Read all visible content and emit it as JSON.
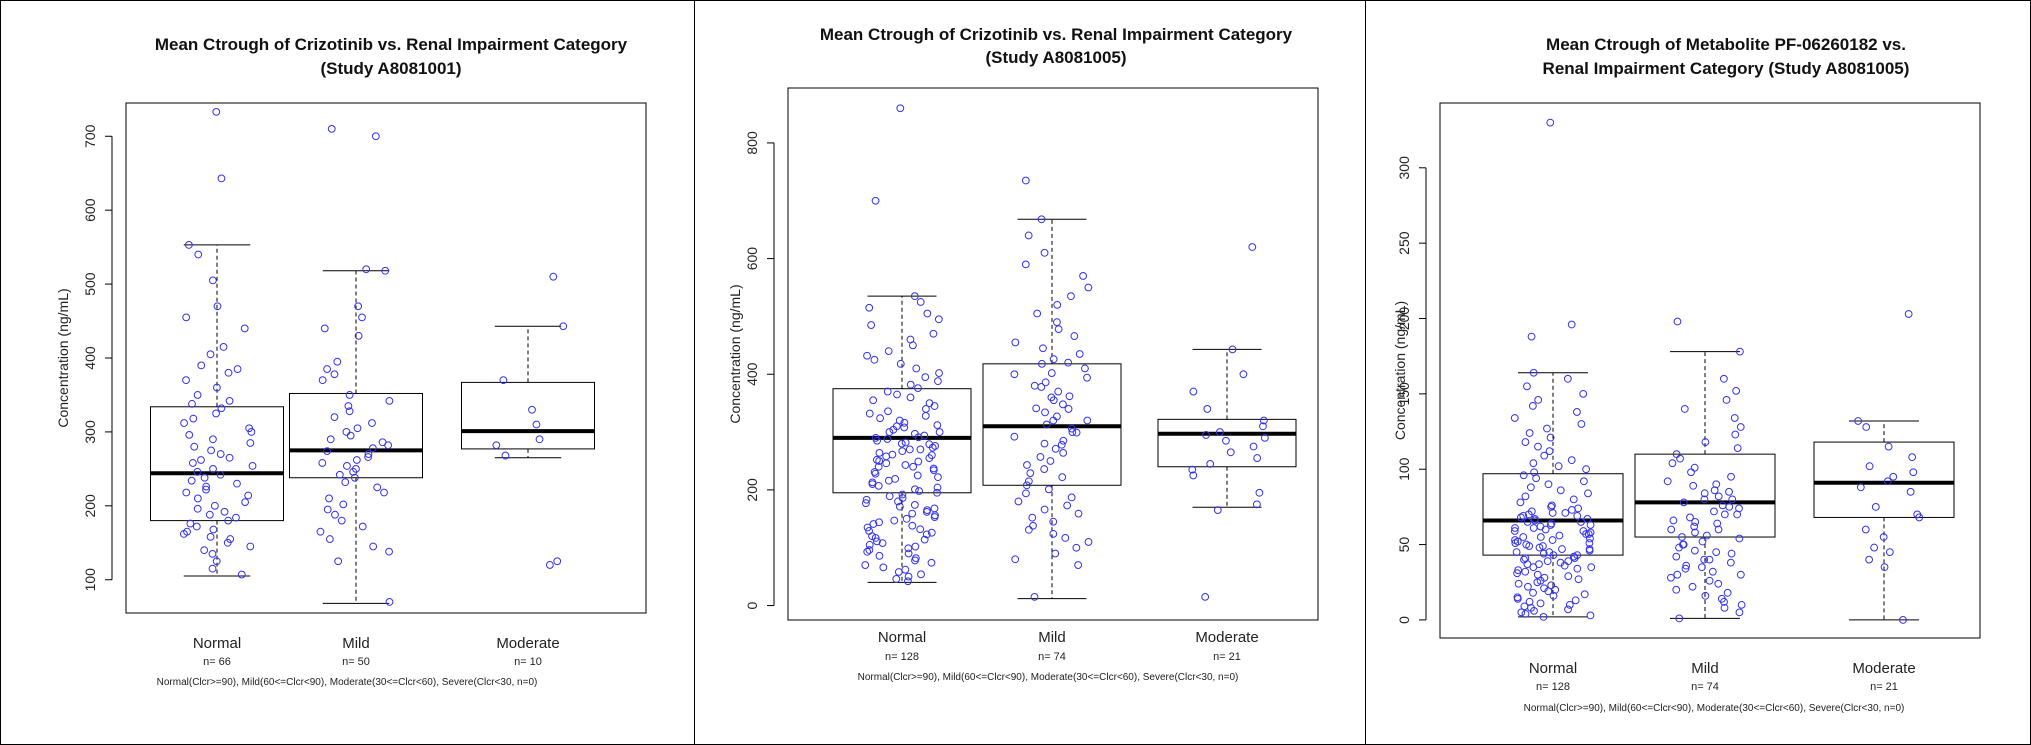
{
  "charts": [
    {
      "title_lines": [
        "Mean Ctrough of Crizotinib vs. Renal Impairment Category",
        "(Study A8081001)"
      ],
      "ylabel": "Concentration (ng/mL)",
      "footnote": "Normal(Clcr>=90), Mild(60<=Clcr<90), Moderate(30<=Clcr<60), Severe(Clcr<30, n=0)",
      "n_labels": [
        "n= 66",
        "n= 50",
        "n= 10"
      ]
    },
    {
      "title_lines": [
        "Mean Ctrough of Crizotinib vs. Renal Impairment Category",
        "(Study A8081005)"
      ],
      "ylabel": "Concentration (ng/mL)",
      "footnote": "Normal(Clcr>=90), Mild(60<=Clcr<90), Moderate(30<=Clcr<60), Severe(Clcr<30, n=0)",
      "n_labels": [
        "n= 128",
        "n= 74",
        "n= 21"
      ]
    },
    {
      "title_lines": [
        "Mean Ctrough of Metabolite PF-06260182 vs.",
        "Renal Impairment Category (Study A8081005)"
      ],
      "ylabel": "Concentration (ng/mL)",
      "footnote": "Normal(Clcr>=90), Mild(60<=Clcr<90), Moderate(30<=Clcr<60), Severe(Clcr<30, n=0)",
      "n_labels": [
        "n= 128",
        "n= 74",
        "n= 21"
      ]
    }
  ],
  "chart_data": [
    {
      "type": "box",
      "categories": [
        "Normal",
        "Mild",
        "Moderate"
      ],
      "yticks": [
        100,
        200,
        300,
        400,
        500,
        600,
        700
      ],
      "ylim": [
        55,
        745
      ],
      "grid": false,
      "point_color": "#3333ee",
      "boxes": [
        {
          "category": "Normal",
          "whisker_low": 105,
          "q1": 180,
          "median": 244,
          "q3": 334,
          "whisker_high": 553,
          "points": [
            733,
            643,
            553,
            540,
            505,
            470,
            455,
            440,
            415,
            405,
            390,
            385,
            380,
            370,
            360,
            350,
            342,
            338,
            332,
            325,
            318,
            312,
            305,
            300,
            296,
            290,
            285,
            280,
            275,
            270,
            265,
            262,
            258,
            254,
            250,
            246,
            242,
            238,
            234,
            230,
            226,
            222,
            218,
            214,
            210,
            205,
            200,
            196,
            192,
            188,
            184,
            180,
            176,
            172,
            168,
            165,
            162,
            158,
            155,
            150,
            145,
            140,
            135,
            125,
            115,
            107
          ]
        },
        {
          "category": "Mild",
          "whisker_low": 68,
          "q1": 238,
          "median": 275,
          "q3": 352,
          "whisker_high": 518,
          "points": [
            710,
            700,
            520,
            518,
            470,
            455,
            440,
            430,
            395,
            385,
            378,
            370,
            350,
            342,
            335,
            328,
            320,
            312,
            305,
            300,
            295,
            290,
            286,
            282,
            278,
            274,
            270,
            266,
            262,
            258,
            254,
            250,
            246,
            242,
            238,
            232,
            225,
            218,
            210,
            202,
            195,
            188,
            180,
            172,
            165,
            155,
            145,
            138,
            125,
            70
          ]
        },
        {
          "category": "Moderate",
          "whisker_low": 265,
          "q1": 277,
          "median": 301,
          "q3": 367,
          "whisker_high": 443,
          "points": [
            510,
            443,
            370,
            330,
            310,
            290,
            282,
            268,
            125,
            120
          ]
        }
      ]
    },
    {
      "type": "box",
      "categories": [
        "Normal",
        "Mild",
        "Moderate"
      ],
      "yticks": [
        0,
        200,
        400,
        600,
        800
      ],
      "ylim": [
        -25,
        895
      ],
      "grid": false,
      "point_color": "#3333ee",
      "boxes": [
        {
          "category": "Normal",
          "whisker_low": 40,
          "q1": 195,
          "median": 290,
          "q3": 375,
          "whisker_high": 535,
          "points": [
            860,
            700,
            535,
            525,
            515,
            505,
            495,
            485,
            470,
            460,
            450,
            440,
            432,
            425,
            418,
            410,
            402,
            395,
            388,
            382,
            376,
            370,
            365,
            360,
            355,
            350,
            345,
            340,
            336,
            332,
            328,
            324,
            320,
            316,
            312,
            308,
            304,
            300,
            297,
            294,
            291,
            288,
            285,
            282,
            279,
            276,
            273,
            270,
            267,
            264,
            261,
            258,
            255,
            252,
            249,
            246,
            243,
            240,
            237,
            234,
            231,
            228,
            225,
            222,
            219,
            216,
            213,
            210,
            207,
            204,
            201,
            198,
            195,
            192,
            189,
            186,
            183,
            180,
            177,
            174,
            171,
            168,
            165,
            162,
            159,
            156,
            153,
            150,
            147,
            144,
            141,
            138,
            135,
            132,
            129,
            126,
            123,
            120,
            117,
            114,
            111,
            108,
            105,
            102,
            99,
            96,
            93,
            90,
            86,
            82,
            78,
            74,
            70,
            66,
            62,
            58,
            54,
            50,
            46,
            42,
            310,
            300,
            290,
            280,
            270,
            260,
            250,
            240
          ]
        },
        {
          "category": "Mild",
          "whisker_low": 12,
          "q1": 208,
          "median": 310,
          "q3": 418,
          "whisker_high": 668,
          "points": [
            735,
            668,
            640,
            610,
            590,
            570,
            550,
            535,
            520,
            505,
            490,
            478,
            466,
            455,
            445,
            435,
            426,
            418,
            410,
            402,
            394,
            386,
            378,
            370,
            362,
            355,
            348,
            341,
            334,
            327,
            320,
            313,
            306,
            299,
            292,
            285,
            278,
            271,
            264,
            257,
            250,
            243,
            236,
            229,
            222,
            215,
            208,
            201,
            194,
            187,
            180,
            173,
            166,
            159,
            152,
            145,
            138,
            131,
            124,
            117,
            110,
            100,
            90,
            80,
            70,
            15,
            420,
            400,
            380,
            360,
            340,
            320,
            300,
            280
          ]
        },
        {
          "category": "Moderate",
          "whisker_low": 170,
          "q1": 240,
          "median": 297,
          "q3": 322,
          "whisker_high": 443,
          "points": [
            620,
            443,
            400,
            370,
            340,
            320,
            310,
            300,
            295,
            290,
            285,
            275,
            265,
            255,
            245,
            235,
            225,
            195,
            175,
            165,
            15
          ]
        }
      ]
    },
    {
      "type": "box",
      "categories": [
        "Normal",
        "Mild",
        "Moderate"
      ],
      "yticks": [
        0,
        50,
        100,
        150,
        200,
        250,
        300
      ],
      "ylim": [
        -12,
        343
      ],
      "grid": false,
      "point_color": "#3333ee",
      "boxes": [
        {
          "category": "Normal",
          "whisker_low": 2,
          "q1": 43,
          "median": 66,
          "q3": 97,
          "whisker_high": 164,
          "points": [
            330,
            196,
            188,
            164,
            160,
            155,
            150,
            146,
            142,
            138,
            134,
            130,
            127,
            124,
            121,
            118,
            115,
            112,
            109,
            106,
            104,
            102,
            100,
            98,
            96,
            94,
            92,
            90,
            88,
            86,
            84,
            82,
            80,
            78,
            76,
            74,
            72,
            71,
            70,
            69,
            68,
            67,
            66,
            65,
            64,
            63,
            62,
            61,
            60,
            59,
            58,
            57,
            56,
            55,
            54,
            53,
            52,
            51,
            50,
            49,
            48,
            47,
            46,
            45,
            44,
            43,
            42,
            41,
            40,
            39,
            38,
            37,
            36,
            35,
            34,
            33,
            32,
            31,
            30,
            29,
            28,
            27,
            26,
            25,
            24,
            23,
            22,
            21,
            20,
            19,
            18,
            17,
            16,
            15,
            14,
            13,
            12,
            11,
            10,
            9,
            8,
            7,
            6,
            5,
            4,
            3,
            2,
            75,
            73,
            71,
            69,
            67,
            65,
            63,
            61,
            59,
            57,
            55,
            53,
            51,
            49,
            47,
            45,
            43,
            41,
            39,
            37,
            35
          ]
        },
        {
          "category": "Mild",
          "whisker_low": 1,
          "q1": 55,
          "median": 78,
          "q3": 110,
          "whisker_high": 178,
          "points": [
            198,
            178,
            160,
            152,
            146,
            140,
            134,
            128,
            123,
            118,
            114,
            110,
            107,
            104,
            101,
            98,
            95,
            92,
            89,
            86,
            84,
            82,
            80,
            78,
            76,
            74,
            72,
            70,
            68,
            66,
            64,
            62,
            60,
            58,
            56,
            54,
            52,
            50,
            48,
            46,
            44,
            42,
            40,
            38,
            36,
            34,
            32,
            30,
            28,
            26,
            24,
            22,
            20,
            18,
            16,
            14,
            12,
            10,
            8,
            5,
            1,
            90,
            85,
            80,
            75,
            70,
            65,
            60,
            55,
            50,
            45,
            40,
            35,
            30
          ]
        },
        {
          "category": "Moderate",
          "whisker_low": 0,
          "q1": 68,
          "median": 91,
          "q3": 118,
          "whisker_high": 132,
          "points": [
            203,
            132,
            128,
            115,
            108,
            102,
            98,
            95,
            92,
            88,
            85,
            75,
            70,
            68,
            60,
            55,
            48,
            45,
            40,
            35,
            0
          ]
        }
      ]
    }
  ]
}
